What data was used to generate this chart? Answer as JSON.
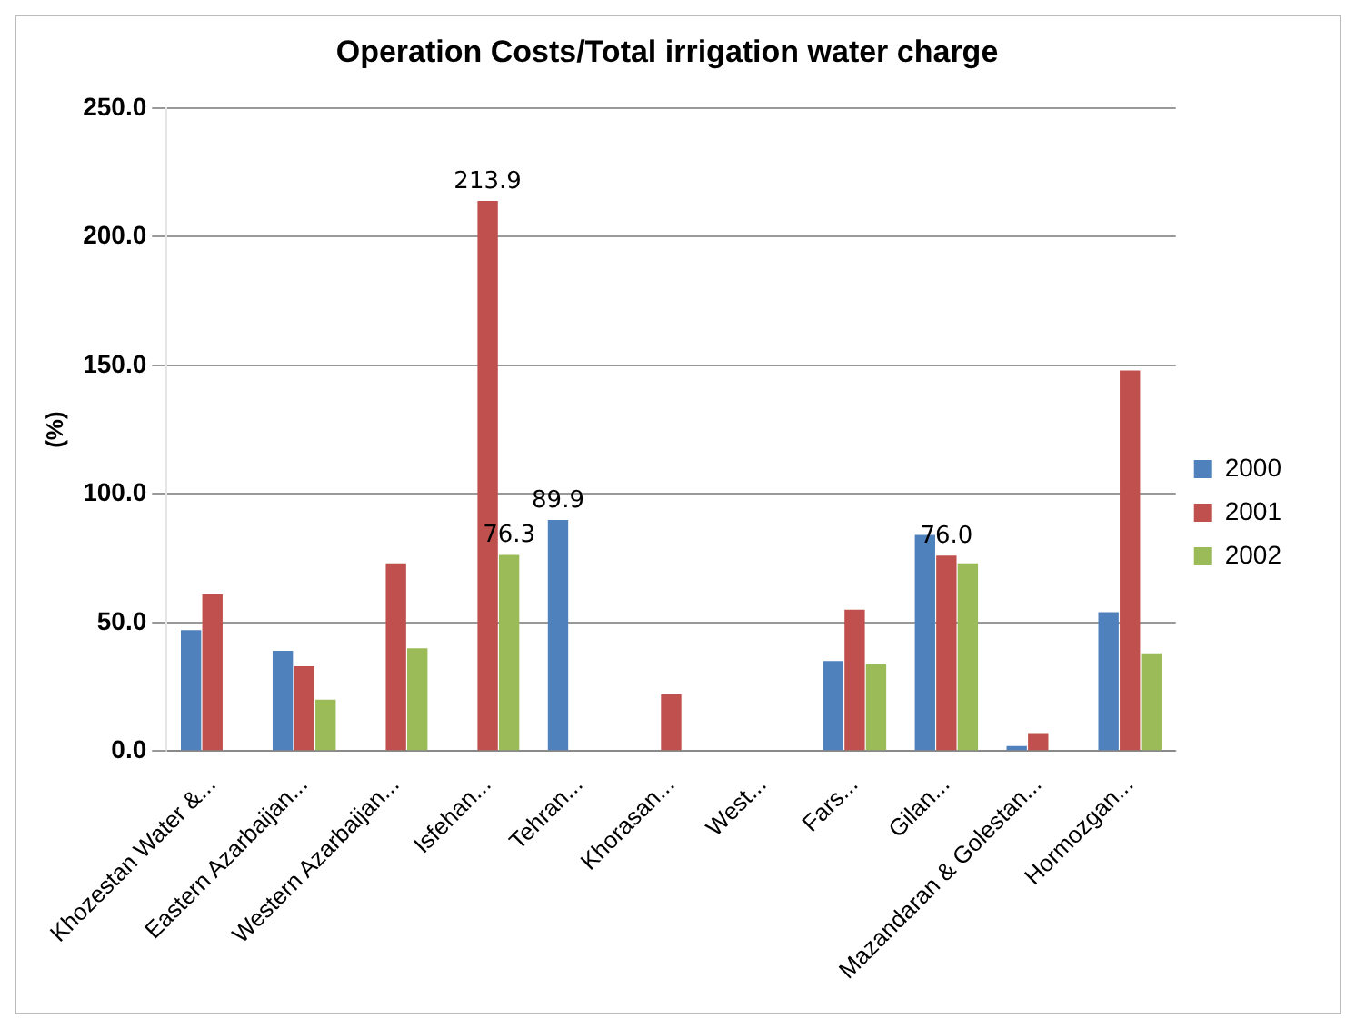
{
  "chart_data": {
    "type": "bar",
    "title": "Operation Costs/Total irrigation water charge",
    "ylabel": "(%)",
    "categories": [
      "Khozestan Water &...",
      "Eastern Azarbaijan...",
      "Western Azarbaijan...",
      "Isfehan...",
      "Tehran...",
      "Khorasan...",
      "West...",
      "Fars...",
      "Gilan...",
      "Mazandaran & Golestan...",
      "Hormozgan..."
    ],
    "series": [
      {
        "name": "2000",
        "color": "#4f81bd",
        "values": [
          47,
          39,
          0,
          0,
          89.9,
          0,
          0,
          35,
          84,
          2,
          54
        ],
        "value_labels": [
          null,
          null,
          null,
          null,
          "89.9",
          null,
          null,
          null,
          null,
          null,
          null
        ]
      },
      {
        "name": "2001",
        "color": "#c0504d",
        "values": [
          61,
          33,
          73,
          213.9,
          0,
          22,
          0,
          55,
          76.0,
          7,
          148
        ],
        "value_labels": [
          null,
          null,
          null,
          "213.9",
          null,
          null,
          null,
          null,
          "76.0",
          null,
          null
        ]
      },
      {
        "name": "2002",
        "color": "#9bbb59",
        "values": [
          0,
          20,
          40,
          76.3,
          0,
          0,
          0,
          34,
          73,
          0,
          38
        ],
        "value_labels": [
          null,
          null,
          null,
          "76.3",
          null,
          null,
          null,
          null,
          null,
          null,
          null
        ]
      }
    ],
    "ylim": [
      0,
      250
    ],
    "yticks": [
      {
        "value": 0,
        "label": "0.0"
      },
      {
        "value": 50,
        "label": "50.0"
      },
      {
        "value": 100,
        "label": "100.0"
      },
      {
        "value": 150,
        "label": "150.0"
      },
      {
        "value": 200,
        "label": "200.0"
      },
      {
        "value": 250,
        "label": "250.0"
      }
    ],
    "grid": "y",
    "legend": "right"
  }
}
